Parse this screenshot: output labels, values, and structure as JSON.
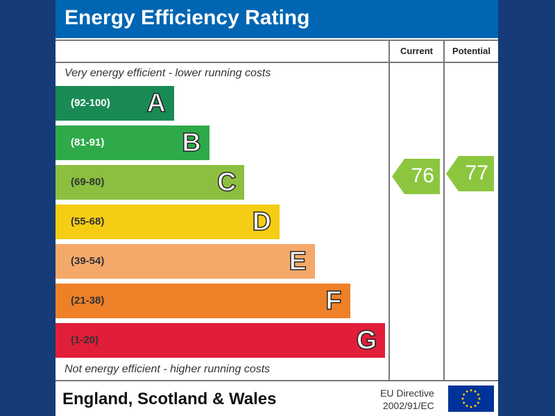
{
  "chart_data": {
    "type": "table",
    "title": "Energy Efficiency Rating",
    "columns": [
      "Current",
      "Potential"
    ],
    "top_note": "Very energy efficient - lower running costs",
    "bottom_note": "Not energy efficient - higher running costs",
    "bands": [
      {
        "letter": "A",
        "range": "(92-100)",
        "color": "#1a8a55",
        "text_color": "#ffffff"
      },
      {
        "letter": "B",
        "range": "(81-91)",
        "color": "#2eaa4a",
        "text_color": "#ffffff"
      },
      {
        "letter": "C",
        "range": "(69-80)",
        "color": "#8cbf3f",
        "text_color": "#333333"
      },
      {
        "letter": "D",
        "range": "(55-68)",
        "color": "#f5cd14",
        "text_color": "#333333"
      },
      {
        "letter": "E",
        "range": "(39-54)",
        "color": "#f4a96a",
        "text_color": "#333333"
      },
      {
        "letter": "F",
        "range": "(21-38)",
        "color": "#ee8027",
        "text_color": "#333333"
      },
      {
        "letter": "G",
        "range": "(1-20)",
        "color": "#e11e3a",
        "text_color": "#333333"
      }
    ],
    "current": {
      "value": "76",
      "band": "C",
      "color": "#8cc63f"
    },
    "potential": {
      "value": "77",
      "band": "C",
      "color": "#8cc63f"
    }
  },
  "footer": {
    "region": "England, Scotland & Wales",
    "directive_line1": "EU Directive",
    "directive_line2": "2002/91/EC",
    "flag_icon": "eu-flag-icon"
  }
}
